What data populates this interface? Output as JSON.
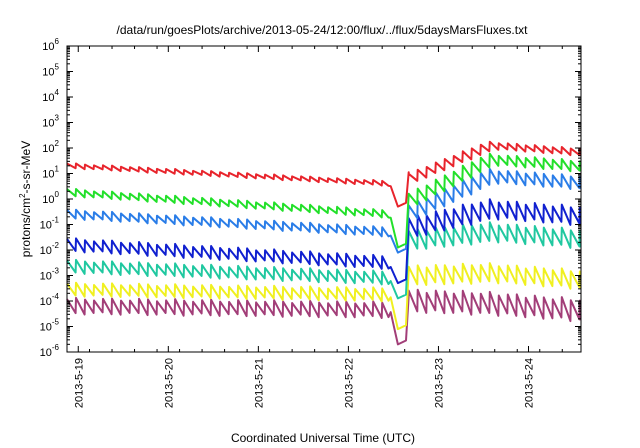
{
  "chart_data": {
    "type": "line",
    "title": "/data/run/goesPlots/archive/2013-05-24/12:00/flux/../flux/5daysMarsFluxes.txt",
    "xlabel": "Coordinated Universal Time (UTC)",
    "ylabel": "protons/cm2-s-sr-MeV",
    "ylabel_main": "protons/cm",
    "ylabel_sup": "2",
    "ylabel_rest": "-s-sr-MeV",
    "yscale": "log",
    "ylim": [
      1e-06,
      1000000.0
    ],
    "xlim": [
      "2013-05-18 21:00",
      "2013-05-24 14:00"
    ],
    "x_ticks": [
      {
        "label": "2013-5-19",
        "day": 0
      },
      {
        "label": "2013-5-20",
        "day": 1
      },
      {
        "label": "2013-5-21",
        "day": 2
      },
      {
        "label": "2013-5-22",
        "day": 3
      },
      {
        "label": "2013-5-23",
        "day": 4
      },
      {
        "label": "2013-5-24",
        "day": 5
      }
    ],
    "y_ticks": [
      {
        "base": "10",
        "exp": "6",
        "value": 6
      },
      {
        "base": "10",
        "exp": "5",
        "value": 5
      },
      {
        "base": "10",
        "exp": "4",
        "value": 4
      },
      {
        "base": "10",
        "exp": "3",
        "value": 3
      },
      {
        "base": "10",
        "exp": "2",
        "value": 2
      },
      {
        "base": "10",
        "exp": "1",
        "value": 1
      },
      {
        "base": "10",
        "exp": "0",
        "value": 0
      },
      {
        "base": "10",
        "exp": "-1",
        "value": -1
      },
      {
        "base": "10",
        "exp": "-2",
        "value": -2
      },
      {
        "base": "10",
        "exp": "-3",
        "value": -3
      },
      {
        "base": "10",
        "exp": "-4",
        "value": -4
      },
      {
        "base": "10",
        "exp": "-5",
        "value": -5
      },
      {
        "base": "10",
        "exp": "-6",
        "value": -6
      }
    ],
    "grid": false,
    "event": {
      "dip_day": 3.45,
      "min_day": 3.55,
      "jump_day": 3.67
    },
    "series": [
      {
        "color": "#e8242c",
        "pre": [
          1.3,
          0.6
        ],
        "post": [
          0.85,
          2.1
        ],
        "ripple": 0.22,
        "decay_pre": 0.33,
        "minv": -0.3
      },
      {
        "color": "#22e02a",
        "pre": [
          0.25,
          -0.6
        ],
        "post": [
          0.0,
          1.55
        ],
        "ripple": 0.33,
        "decay_pre": 0.45,
        "minv": -1.9
      },
      {
        "color": "#2a7de8",
        "pre": [
          -0.6,
          -1.3
        ],
        "post": [
          -0.5,
          0.9
        ],
        "ripple": 0.4,
        "decay_pre": 0.45,
        "minv": -2.1
      },
      {
        "color": "#1020d0",
        "pre": [
          -1.8,
          -2.5
        ],
        "post": [
          -1.1,
          -0.4
        ],
        "ripple": 0.55,
        "decay_pre": 0.55,
        "minv": -3.3
      },
      {
        "color": "#20c8a0",
        "pre": [
          -2.65,
          -3.1
        ],
        "post": [
          -1.6,
          -1.3
        ],
        "ripple": 0.55,
        "decay_pre": 0.4,
        "minv": -3.9
      },
      {
        "color": "#f0f020",
        "pre": [
          -3.55,
          -3.75
        ],
        "post": [
          -3.0,
          -2.9
        ],
        "ripple": 0.55,
        "decay_pre": 0.35,
        "minv": -5.1
      },
      {
        "color": "#a23e78",
        "pre": [
          -4.2,
          -4.35
        ],
        "post": [
          -4.0,
          -4.1
        ],
        "ripple": 0.65,
        "decay_pre": 0.3,
        "minv": -5.7
      }
    ]
  }
}
